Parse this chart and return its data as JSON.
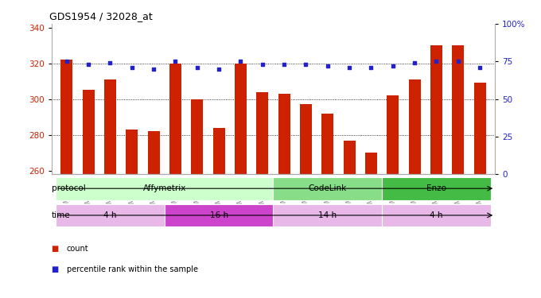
{
  "title": "GDS1954 / 32028_at",
  "samples": [
    "GSM73359",
    "GSM73360",
    "GSM73361",
    "GSM73362",
    "GSM73363",
    "GSM73344",
    "GSM73345",
    "GSM73346",
    "GSM73347",
    "GSM73348",
    "GSM73349",
    "GSM73350",
    "GSM73351",
    "GSM73352",
    "GSM73353",
    "GSM73354",
    "GSM73355",
    "GSM73356",
    "GSM73357",
    "GSM73358"
  ],
  "count_values": [
    322,
    305,
    311,
    283,
    282,
    320,
    300,
    284,
    320,
    304,
    303,
    297,
    292,
    277,
    270,
    302,
    311,
    330,
    330,
    309
  ],
  "percentile_values": [
    75,
    73,
    74,
    71,
    70,
    75,
    71,
    70,
    75,
    73,
    73,
    73,
    72,
    71,
    71,
    72,
    74,
    75,
    75,
    71
  ],
  "ylim_left": [
    258,
    342
  ],
  "ylim_right": [
    0,
    100
  ],
  "yticks_left": [
    260,
    280,
    300,
    320,
    340
  ],
  "yticks_right": [
    0,
    25,
    50,
    75,
    100
  ],
  "bar_color": "#cc2200",
  "dot_color": "#2222cc",
  "protocol_groups": [
    {
      "label": "Affymetrix",
      "start": 0,
      "end": 9,
      "color": "#ccffcc"
    },
    {
      "label": "CodeLink",
      "start": 10,
      "end": 14,
      "color": "#88dd88"
    },
    {
      "label": "Enzo",
      "start": 15,
      "end": 19,
      "color": "#44bb44"
    }
  ],
  "time_groups": [
    {
      "label": "4 h",
      "start": 0,
      "end": 4,
      "color": "#e8b8e8"
    },
    {
      "label": "16 h",
      "start": 5,
      "end": 9,
      "color": "#cc44cc"
    },
    {
      "label": "14 h",
      "start": 10,
      "end": 14,
      "color": "#e8b8e8"
    },
    {
      "label": "4 h",
      "start": 15,
      "end": 19,
      "color": "#e8b8e8"
    }
  ],
  "bar_width": 0.55,
  "grid_yticks": [
    280,
    300,
    320
  ],
  "bg_color": "#ffffff",
  "tick_label_color": "#888888"
}
